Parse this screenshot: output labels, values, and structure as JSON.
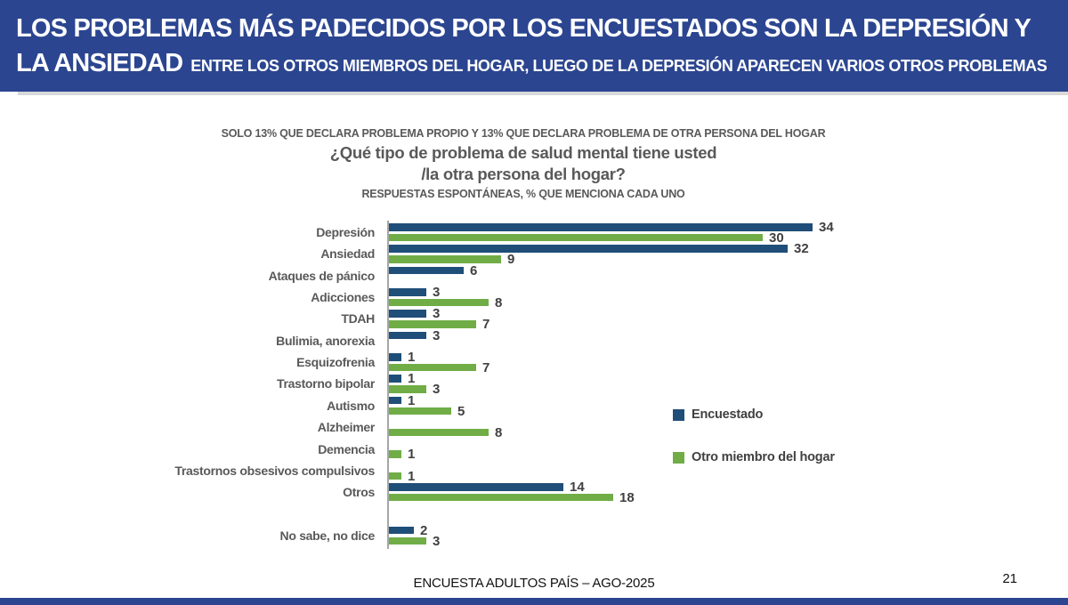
{
  "header": {
    "band_color": "#2B4590",
    "title_line1": "LOS PROBLEMAS MÁS PADECIDOS POR LOS ENCUESTADOS SON LA DEPRESIÓN Y",
    "title_line2_emphasis": "LA ANSIEDAD",
    "title_line2_rest": "ENTRE LOS OTROS MIEMBROS DEL HOGAR, LUEGO DE LA DEPRESIÓN APARECEN VARIOS OTROS PROBLEMAS"
  },
  "titles": {
    "pre_title": "SOLO 13% QUE DECLARA PROBLEMA PROPIO Y 13% QUE DECLARA PROBLEMA DE OTRA PERSONA DEL HOGAR",
    "question_line1": "¿Qué tipo de problema de salud mental tiene usted",
    "question_line2": "/la otra persona del hogar?",
    "subtitle": "RESPUESTAS ESPONTÁNEAS, % QUE MENCIONA CADA UNO"
  },
  "chart_data": {
    "type": "bar",
    "orientation": "horizontal",
    "title": "¿Qué tipo de problema de salud mental tiene usted /la otra persona del hogar?",
    "subtitle": "RESPUESTAS ESPONTÁNEAS, % QUE MENCIONA CADA UNO",
    "categories": [
      "Depresión",
      "Ansiedad",
      "Ataques de pánico",
      "Adicciones",
      "TDAH",
      "Bulimia, anorexia",
      "Esquizofrenia",
      "Trastorno bipolar",
      "Autismo",
      "Alzheimer",
      "Demencia",
      "Trastornos obsesivos compulsivos",
      "Otros",
      "",
      "No sabe, no dice"
    ],
    "series": [
      {
        "name": "Encuestado",
        "color": "#1F4E79",
        "values": [
          34,
          32,
          6,
          3,
          3,
          3,
          1,
          1,
          1,
          null,
          null,
          null,
          14,
          null,
          2
        ]
      },
      {
        "name": "Otro miembro del hogar",
        "color": "#70AD47",
        "values": [
          30,
          9,
          null,
          8,
          7,
          null,
          7,
          3,
          5,
          8,
          1,
          1,
          18,
          null,
          3
        ]
      }
    ],
    "xlim": [
      0,
      36
    ],
    "value_labels": true,
    "grid": false,
    "legend_position": "center-right"
  },
  "footer": {
    "source": "ENCUESTA ADULTOS PAÍS – AGO-2025",
    "page_number": "21"
  }
}
